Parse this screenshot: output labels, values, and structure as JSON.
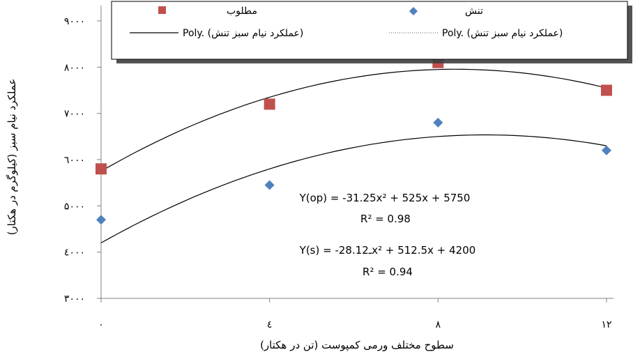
{
  "chart_data": {
    "type": "scatter",
    "title": "",
    "xlabel": "سطوح مختلف ورمی کمپوست (تن در هکتار)",
    "ylabel": "عملکرد نیام سبز (کیلوگرم در هکتار)",
    "x_ticks": [
      0,
      4,
      8,
      12
    ],
    "x_tick_labels": [
      "۰",
      "٤",
      "۸",
      "۱۲"
    ],
    "y_ticks": [
      3000,
      4000,
      5000,
      6000,
      7000,
      8000,
      9000
    ],
    "y_tick_labels": [
      "۳۰۰۰",
      "٤۰۰۰",
      "۵۰۰۰",
      "٦۰۰۰",
      "۷۰۰۰",
      "۸۰۰۰",
      "۹۰۰۰"
    ],
    "xlim": [
      0,
      12
    ],
    "ylim": [
      3000,
      9000
    ],
    "grid": false,
    "legend_position": "top",
    "series": [
      {
        "name": "مطلوب",
        "marker": "square",
        "color": "#c0504d",
        "x": [
          0,
          4,
          8,
          12
        ],
        "y": [
          5800,
          7200,
          8100,
          7500
        ]
      },
      {
        "name": "تنش",
        "marker": "diamond",
        "color": "#4f81bd",
        "x": [
          0,
          4,
          8,
          12
        ],
        "y": [
          4700,
          5450,
          6800,
          6200
        ]
      }
    ],
    "trendlines": [
      {
        "name": "Poly. (عملکرد نیام سبز تنش)",
        "style": "solid",
        "coefficients": [
          -31.25,
          525,
          5750
        ]
      },
      {
        "name": "Poly. (عملکرد نیام سبز تنش)",
        "style": "dotted",
        "coefficients": [
          -28.12,
          512.5,
          4200
        ]
      }
    ],
    "annotations": [
      "Y(op) = -31.25x² + 525x + 5750",
      "R² = 0.98",
      "Y(s) = -28.12ـx² + 512.5x + 4200",
      "R² = 0.94"
    ]
  }
}
